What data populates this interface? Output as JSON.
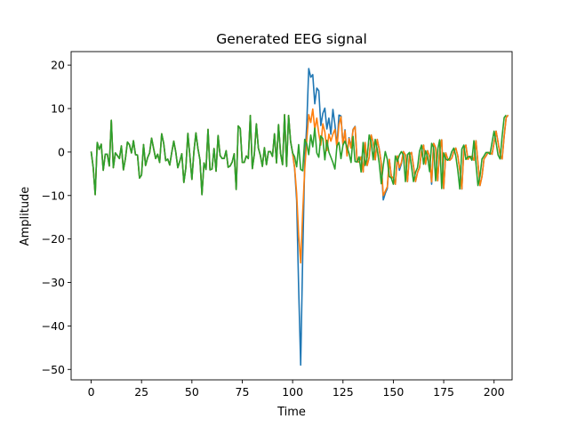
{
  "chart_data": {
    "type": "line",
    "title": "Generated EEG signal",
    "xlabel": "Time",
    "ylabel": "Amplitude",
    "xlim": [
      -9.95,
      208.95
    ],
    "ylim": [
      -52.4,
      23.1
    ],
    "xticks": [
      0,
      25,
      50,
      75,
      100,
      125,
      150,
      175,
      200
    ],
    "yticks": [
      -50,
      -40,
      -30,
      -20,
      -10,
      0,
      10,
      20
    ],
    "grid": false,
    "legend": "none",
    "colors": [
      "#1f77b4",
      "#ff7f0e",
      "#2ca02c"
    ],
    "series": [
      {
        "values": [
          0.1,
          -3.5,
          -9.8,
          2.2,
          0.6,
          1.8,
          -4.2,
          -0.5,
          -0.5,
          -3.2,
          7.3,
          -3.6,
          -0.2,
          -0.8,
          -1.5,
          1.4,
          -4.1,
          -1.5,
          2.3,
          1.7,
          -0.2,
          2.6,
          -0.6,
          -0.7,
          -6.0,
          -5.3,
          1.7,
          -3.1,
          -1.3,
          -0.2,
          3.2,
          0.8,
          -1.5,
          -0.5,
          -2.4,
          4.2,
          2.0,
          -2.0,
          -1.6,
          -3.0,
          -0.1,
          2.5,
          0.0,
          -3.6,
          -2.1,
          -0.4,
          -7.0,
          -3.6,
          4.3,
          -0.9,
          -6.3,
          0.1,
          4.4,
          0.8,
          -1.8,
          -9.8,
          -2.5,
          -4.0,
          5.2,
          -4.1,
          -3.9,
          0.8,
          -4.4,
          3.8,
          -0.8,
          -1.5,
          -1.5,
          0.3,
          -3.5,
          -3.2,
          -2.3,
          -0.4,
          -8.6,
          6.0,
          5.4,
          -2.4,
          -2.4,
          -0.9,
          -1.5,
          8.4,
          -3.8,
          -0.5,
          6.5,
          0.9,
          -0.8,
          -3.3,
          1.0,
          -2.9,
          0.1,
          0.1,
          -1.0,
          4.2,
          -2.5,
          6.3,
          -0.3,
          -2.9,
          8.6,
          -3.3,
          8.4,
          2.4,
          -0.2,
          -3.8,
          -11.1,
          -31.4,
          -49.0,
          -24.0,
          -2.4,
          6.1,
          19.2,
          17.2,
          17.8,
          11.1,
          14.7,
          14.1,
          6.1,
          8.9,
          10.1,
          5.3,
          7.8,
          4.1,
          9.8,
          6.3,
          1.3,
          8.5,
          8.3,
          1.6,
          5.1,
          -0.7,
          3.3,
          1.1,
          5.2,
          5.9,
          -2.2,
          -2.3,
          -1.1,
          -4.6,
          2.2,
          -3.1,
          -1.2,
          3.9,
          2.2,
          -1.8,
          2.9,
          0.6,
          -2.6,
          -11.0,
          -9.5,
          -8.4,
          -1.7,
          -5.6,
          -6.0,
          -7.4,
          -0.9,
          -4.2,
          -2.7,
          0.1,
          -0.7,
          -6.8,
          -0.6,
          -0.1,
          -3.3,
          -6.8,
          -4.7,
          -3.6,
          0.2,
          1.6,
          -2.8,
          0.3,
          -1.1,
          -7.4,
          2.0,
          1.0,
          -6.6,
          0.5,
          2.8,
          -8.4,
          -0.2,
          -1.6,
          -1.9,
          -1.4,
          0.1,
          0.9,
          -0.9,
          -4.2,
          -8.5,
          0.7,
          1.6,
          -1.7,
          -1.1,
          -1.0,
          -1.9,
          2.6,
          -2.6,
          -7.7,
          -5.6,
          -1.6,
          -0.9,
          -0.1,
          -0.1,
          -0.5,
          2.2,
          4.8,
          2.2,
          -0.7,
          -1.6,
          3.6,
          7.9,
          8.5
        ]
      },
      {
        "values": [
          0.1,
          -3.5,
          -9.8,
          2.2,
          0.6,
          1.8,
          -4.2,
          -0.5,
          -0.5,
          -3.2,
          7.3,
          -3.6,
          -0.2,
          -0.8,
          -1.5,
          1.4,
          -4.1,
          -1.5,
          2.3,
          1.7,
          -0.2,
          2.6,
          -0.6,
          -0.7,
          -6.0,
          -5.3,
          1.7,
          -3.1,
          -1.3,
          -0.2,
          3.2,
          0.8,
          -1.5,
          -0.5,
          -2.4,
          4.2,
          2.0,
          -2.0,
          -1.6,
          -3.0,
          -0.1,
          2.5,
          0.0,
          -3.6,
          -2.1,
          -0.4,
          -7.0,
          -3.6,
          4.3,
          -0.9,
          -6.3,
          0.1,
          4.4,
          0.8,
          -1.8,
          -9.8,
          -2.5,
          -4.0,
          5.2,
          -4.1,
          -3.9,
          0.8,
          -4.4,
          3.8,
          -0.8,
          -1.5,
          -1.5,
          0.3,
          -3.5,
          -3.2,
          -2.3,
          -0.4,
          -8.6,
          6.0,
          5.4,
          -2.4,
          -2.4,
          -0.9,
          -1.5,
          8.4,
          -3.8,
          -0.5,
          6.5,
          0.9,
          -0.8,
          -3.3,
          1.0,
          -2.9,
          0.1,
          0.1,
          -1.0,
          4.2,
          -2.5,
          6.3,
          -0.3,
          -2.9,
          8.6,
          -3.3,
          8.4,
          2.4,
          -0.2,
          -3.6,
          -9.5,
          -19.2,
          -25.5,
          -14.0,
          -4.0,
          2.6,
          8.6,
          6.8,
          9.9,
          5.2,
          7.8,
          4.2,
          1.6,
          6.5,
          4.6,
          0.3,
          4.1,
          2.5,
          4.1,
          5.2,
          1.0,
          6.3,
          8.1,
          1.5,
          4.9,
          -0.9,
          3.1,
          0.9,
          5.1,
          5.8,
          -2.2,
          -2.3,
          -1.1,
          -4.6,
          2.2,
          -3.1,
          -1.2,
          3.9,
          2.2,
          -1.8,
          2.9,
          0.6,
          -2.6,
          -10.0,
          -9.0,
          -8.0,
          -1.7,
          -5.6,
          -6.0,
          -7.4,
          -0.9,
          -3.6,
          -2.4,
          0.1,
          -0.7,
          -6.8,
          -0.6,
          -0.1,
          -3.3,
          -6.8,
          -4.7,
          -3.6,
          0.2,
          1.6,
          -2.8,
          0.3,
          -1.1,
          -6.9,
          2.0,
          1.0,
          -6.6,
          0.5,
          2.8,
          -8.4,
          -0.2,
          -1.6,
          -1.9,
          -1.4,
          0.1,
          0.9,
          -0.9,
          -4.2,
          -8.5,
          0.7,
          1.6,
          -1.7,
          -1.1,
          -1.0,
          -1.9,
          2.6,
          -2.6,
          -7.7,
          -5.6,
          -1.6,
          -0.9,
          -0.1,
          -0.1,
          -0.5,
          2.2,
          4.8,
          2.2,
          -0.7,
          -1.6,
          3.6,
          7.9,
          8.5
        ]
      },
      {
        "values": [
          0.1,
          -3.5,
          -9.8,
          2.2,
          0.6,
          1.8,
          -4.2,
          -0.5,
          -0.5,
          -3.2,
          7.3,
          -3.6,
          -0.2,
          -0.8,
          -1.5,
          1.4,
          -4.1,
          -1.5,
          2.3,
          1.7,
          -0.2,
          2.6,
          -0.6,
          -0.7,
          -6.0,
          -5.3,
          1.7,
          -3.1,
          -1.3,
          -0.2,
          3.2,
          0.8,
          -1.5,
          -0.5,
          -2.4,
          4.2,
          2.0,
          -2.0,
          -1.6,
          -3.0,
          -0.1,
          2.5,
          0.0,
          -3.6,
          -2.1,
          -0.4,
          -7.0,
          -3.6,
          4.3,
          -0.9,
          -6.3,
          0.1,
          4.4,
          0.8,
          -1.8,
          -9.8,
          -2.5,
          -4.0,
          5.2,
          -4.1,
          -3.9,
          0.8,
          -4.4,
          3.8,
          -0.8,
          -1.5,
          -1.5,
          0.3,
          -3.5,
          -3.2,
          -2.3,
          -0.4,
          -8.6,
          6.0,
          5.4,
          -2.4,
          -2.4,
          -0.9,
          -1.5,
          8.4,
          -3.8,
          -0.5,
          6.5,
          0.9,
          -0.8,
          -3.3,
          1.0,
          -2.9,
          0.1,
          0.1,
          -1.0,
          4.2,
          -2.5,
          6.3,
          -0.3,
          -2.9,
          8.6,
          -3.3,
          8.4,
          2.4,
          -0.2,
          -1.1,
          -3.4,
          1.7,
          -4.0,
          -4.3,
          2.9,
          1.9,
          -0.6,
          3.9,
          1.2,
          5.5,
          -0.2,
          -1.2,
          3.7,
          3.1,
          -1.8,
          2.7,
          0.0,
          -1.2,
          -2.4,
          -3.9,
          1.4,
          2.2,
          -1.5,
          1.6,
          2.5,
          1.1,
          -0.3,
          -2.4,
          3.6,
          -2.2,
          -2.3,
          -1.1,
          -4.6,
          2.2,
          -3.1,
          -1.2,
          3.9,
          2.2,
          -1.8,
          2.9,
          0.6,
          -2.6,
          -7.3,
          -3.1,
          0.1,
          -1.7,
          -5.6,
          -6.0,
          -7.4,
          -0.9,
          -2.2,
          -0.7,
          0.1,
          -0.7,
          -6.8,
          -0.6,
          -0.1,
          -3.3,
          -6.8,
          -4.7,
          -3.6,
          0.2,
          1.6,
          -2.8,
          0.3,
          -1.1,
          -4.5,
          2.0,
          1.0,
          -6.6,
          0.5,
          2.8,
          -8.4,
          -0.2,
          -1.6,
          -1.9,
          -1.4,
          0.1,
          0.9,
          -0.9,
          -4.2,
          -8.5,
          0.7,
          1.6,
          -1.7,
          -1.1,
          -1.0,
          -1.9,
          2.6,
          -2.6,
          -7.7,
          -5.6,
          -1.6,
          -0.9,
          -0.1,
          -0.1,
          -0.5,
          2.2,
          4.8,
          2.2,
          -0.7,
          -1.6,
          3.6,
          7.9,
          8.5
        ]
      }
    ]
  }
}
